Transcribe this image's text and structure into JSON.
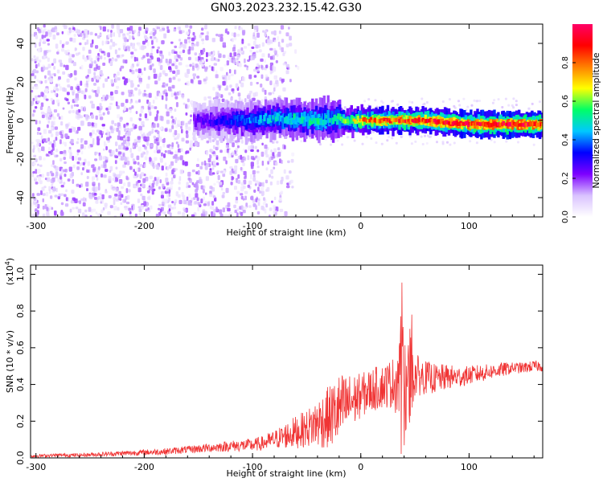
{
  "figure": {
    "title": "GN03.2023.232.15.42.G30"
  },
  "chart_data": [
    {
      "type": "heatmap",
      "xlabel": "Height of straight line (km)",
      "ylabel": "Frequency (Hz)",
      "xlim": [
        -305,
        168
      ],
      "ylim": [
        -50,
        50
      ],
      "x_ticks": [
        -300,
        -200,
        -100,
        0,
        100
      ],
      "y_ticks": [
        -40,
        -20,
        0,
        20,
        40
      ],
      "grid": false,
      "colorbar": {
        "label": "Normalized spectral amplitude",
        "range": [
          0.0,
          1.0
        ],
        "ticks": [
          0.0,
          0.2,
          0.4,
          0.6,
          0.8
        ],
        "colormap": [
          "#ffffff",
          "#d9c2ff",
          "#7d00ff",
          "#0000ff",
          "#00c8ff",
          "#00ff66",
          "#ffff00",
          "#ff8000",
          "#ff0000",
          "#ff0066"
        ]
      },
      "noise_region_x": [
        -305,
        -85
      ],
      "ridge": [
        {
          "x": -155,
          "freq": 0,
          "amp": 0.22
        },
        {
          "x": -130,
          "freq": 0,
          "amp": 0.3
        },
        {
          "x": -100,
          "freq": 0,
          "amp": 0.4
        },
        {
          "x": -80,
          "freq": 1,
          "amp": 0.45
        },
        {
          "x": -60,
          "freq": 1,
          "amp": 0.48
        },
        {
          "x": -40,
          "freq": 0,
          "amp": 0.5
        },
        {
          "x": -25,
          "freq": 1,
          "amp": 0.5
        },
        {
          "x": -10,
          "freq": 0,
          "amp": 0.6
        },
        {
          "x": 0,
          "freq": 0,
          "amp": 0.75
        },
        {
          "x": 20,
          "freq": 0,
          "amp": 0.82
        },
        {
          "x": 40,
          "freq": 0,
          "amp": 0.85
        },
        {
          "x": 60,
          "freq": 0,
          "amp": 0.85
        },
        {
          "x": 80,
          "freq": -1,
          "amp": 0.88
        },
        {
          "x": 100,
          "freq": -2,
          "amp": 0.9
        },
        {
          "x": 120,
          "freq": -2,
          "amp": 0.92
        },
        {
          "x": 140,
          "freq": -2,
          "amp": 0.92
        },
        {
          "x": 160,
          "freq": -2,
          "amp": 0.9
        },
        {
          "x": 168,
          "freq": -2,
          "amp": 0.88
        }
      ]
    },
    {
      "type": "line",
      "xlabel": "Height of straight line (km)",
      "ylabel": "SNR (10 * v/v)",
      "y_multiplier": "(x10",
      "y_multiplier_exponent": "4",
      "y_multiplier_close": ")",
      "xlim": [
        -305,
        168
      ],
      "ylim": [
        0.0,
        1.05
      ],
      "x_ticks": [
        -300,
        -200,
        -100,
        0,
        100
      ],
      "y_ticks": [
        0.0,
        0.2,
        0.4,
        0.6,
        0.8,
        1.0
      ],
      "grid": false,
      "color": "#f03434",
      "series": [
        {
          "x": [
            -305,
            -280,
            -260,
            -240,
            -220,
            -200,
            -180,
            -160,
            -140,
            -120,
            -100,
            -90,
            -80,
            -70,
            -60,
            -50,
            -40,
            -30,
            -20,
            -10,
            0,
            10,
            20,
            30,
            40,
            45,
            50,
            60,
            70,
            80,
            90,
            100,
            110,
            120,
            130,
            140,
            150,
            160,
            168
          ],
          "values": [
            0.01,
            0.015,
            0.015,
            0.02,
            0.025,
            0.03,
            0.035,
            0.045,
            0.055,
            0.065,
            0.07,
            0.08,
            0.1,
            0.12,
            0.14,
            0.16,
            0.19,
            0.22,
            0.26,
            0.3,
            0.34,
            0.37,
            0.39,
            0.41,
            0.44,
            0.45,
            0.45,
            0.44,
            0.43,
            0.44,
            0.44,
            0.45,
            0.46,
            0.47,
            0.48,
            0.49,
            0.49,
            0.5,
            0.5
          ],
          "noise": [
            0.008,
            0.01,
            0.01,
            0.012,
            0.014,
            0.016,
            0.018,
            0.02,
            0.025,
            0.03,
            0.035,
            0.04,
            0.05,
            0.07,
            0.09,
            0.1,
            0.14,
            0.17,
            0.2,
            0.16,
            0.12,
            0.12,
            0.12,
            0.14,
            0.3,
            0.28,
            0.12,
            0.09,
            0.08,
            0.07,
            0.06,
            0.05,
            0.05,
            0.04,
            0.04,
            0.03,
            0.03,
            0.03,
            0.03
          ]
        }
      ]
    }
  ]
}
